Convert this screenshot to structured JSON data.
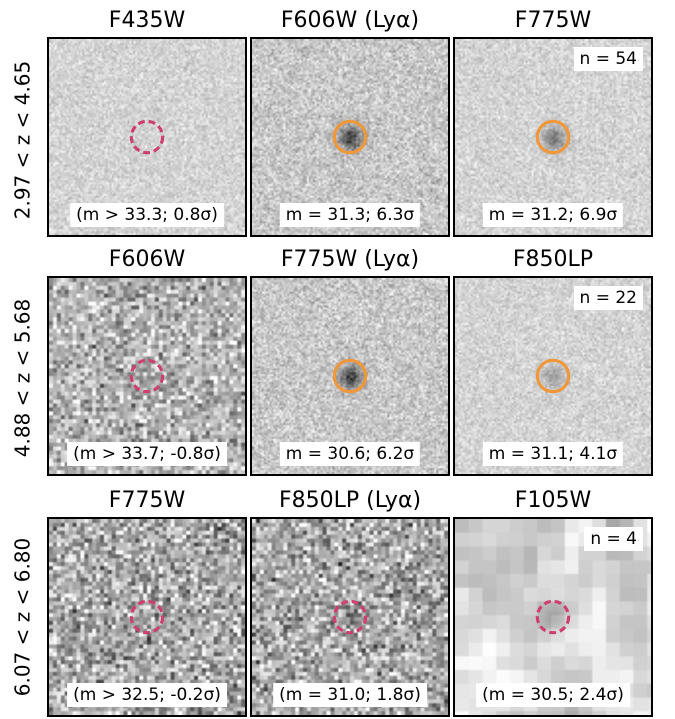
{
  "rows": [
    {
      "label": "2.97 < z < 4.65",
      "count": "n = 54",
      "panels": [
        {
          "title": "F435W",
          "mag": "(m > 33.3; 0.8σ)",
          "detection": "non-detection",
          "noise": "fine-light",
          "source": 0.0
        },
        {
          "title": "F606W (Lyα)",
          "mag": "m = 31.3; 6.3σ",
          "detection": "detection",
          "noise": "fine-medium",
          "source": 0.9
        },
        {
          "title": "F775W",
          "mag": "m = 31.2; 6.9σ",
          "detection": "detection",
          "noise": "fine-light",
          "source": 0.6
        }
      ]
    },
    {
      "label": "4.88 < z < 5.68",
      "count": "n = 22",
      "panels": [
        {
          "title": "F606W",
          "mag": "(m > 33.7; -0.8σ)",
          "detection": "non-detection",
          "noise": "medium-dark",
          "source": 0.15
        },
        {
          "title": "F775W  (Lyα)",
          "mag": "m = 30.6; 6.2σ",
          "detection": "detection",
          "noise": "fine-medium",
          "source": 0.9
        },
        {
          "title": "F850LP",
          "mag": "m = 31.1; 4.1σ",
          "detection": "detection",
          "noise": "fine-light",
          "source": 0.35
        }
      ]
    },
    {
      "label": "6.07 < z < 6.80",
      "count": "n = 4",
      "panels": [
        {
          "title": "F775W",
          "mag": "(m > 32.5; -0.2σ)",
          "detection": "non-detection",
          "noise": "coarse-dark",
          "source": 0.0
        },
        {
          "title": "F850LP  (Lyα)",
          "mag": "(m = 31.0; 1.8σ)",
          "detection": "non-detection",
          "noise": "coarse-dark",
          "source": 0.2
        },
        {
          "title": "F105W",
          "mag": "(m = 30.5; 2.4σ)",
          "detection": "non-detection",
          "noise": "blurry",
          "source": 0.2
        }
      ]
    }
  ],
  "colors": {
    "detection": "#f0973a",
    "non-detection": "#cf3f6e",
    "frame": "#000000",
    "box": "#ffffff"
  }
}
